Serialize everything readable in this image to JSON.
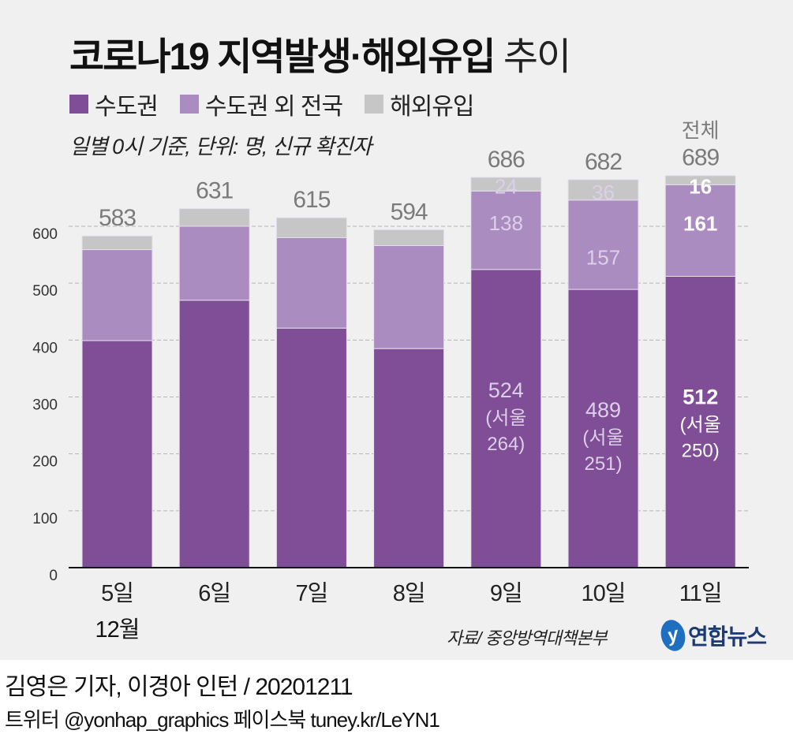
{
  "title": {
    "bold": "코로나19 지역발생·해외유입",
    "light": "추이"
  },
  "subtitle": "일별 0시 기준, 단위: 명, 신규 확진자",
  "colors": {
    "capital": "#7f4e97",
    "noncapital": "#ab8cc1",
    "imported": "#c6c6c6",
    "total_label": "#7b7b7b",
    "inbar_label_dim": "#dcd0e8",
    "inbar_label_bright": "#ffffff"
  },
  "chart_data": {
    "type": "bar",
    "stacked": true,
    "title": "코로나19 지역발생·해외유입 추이",
    "subtitle": "일별 0시 기준, 단위: 명, 신규 확진자",
    "xlabel": "",
    "ylabel": "",
    "categories": [
      "5일",
      "6일",
      "7일",
      "8일",
      "9일",
      "10일",
      "11일"
    ],
    "category_group_label": "12월",
    "yticks": [
      0,
      100,
      200,
      300,
      400,
      500,
      600
    ],
    "ylim": [
      0,
      700
    ],
    "grid": true,
    "legend_position": "top-left",
    "series": [
      {
        "name": "수도권",
        "values": [
          399,
          470,
          421,
          385,
          524,
          489,
          512
        ]
      },
      {
        "name": "수도권 외 전국",
        "values": [
          160,
          130,
          159,
          181,
          138,
          157,
          161
        ]
      },
      {
        "name": "해외유입",
        "values": [
          24,
          31,
          35,
          28,
          24,
          36,
          16
        ]
      }
    ],
    "totals": [
      583,
      631,
      615,
      594,
      686,
      682,
      689
    ],
    "total_prefix_last": "전체",
    "annotations": [
      {
        "category": "9일",
        "capital": "524",
        "seoul": "(서울\n264)",
        "noncapital": "138",
        "imported": "24"
      },
      {
        "category": "10일",
        "capital": "489",
        "seoul": "(서울\n251)",
        "noncapital": "157",
        "imported": "36"
      },
      {
        "category": "11일",
        "capital": "512",
        "seoul": "(서울\n250)",
        "noncapital": "161",
        "imported": "16"
      }
    ]
  },
  "source": "자료/ 중앙방역대책본부",
  "logo": {
    "mark": "y",
    "text": "연합뉴스"
  },
  "credit": "김영은 기자, 이경아 인턴 / 20201211",
  "social": "트위터 @yonhap_graphics  페이스북 tuney.kr/LeYN1"
}
